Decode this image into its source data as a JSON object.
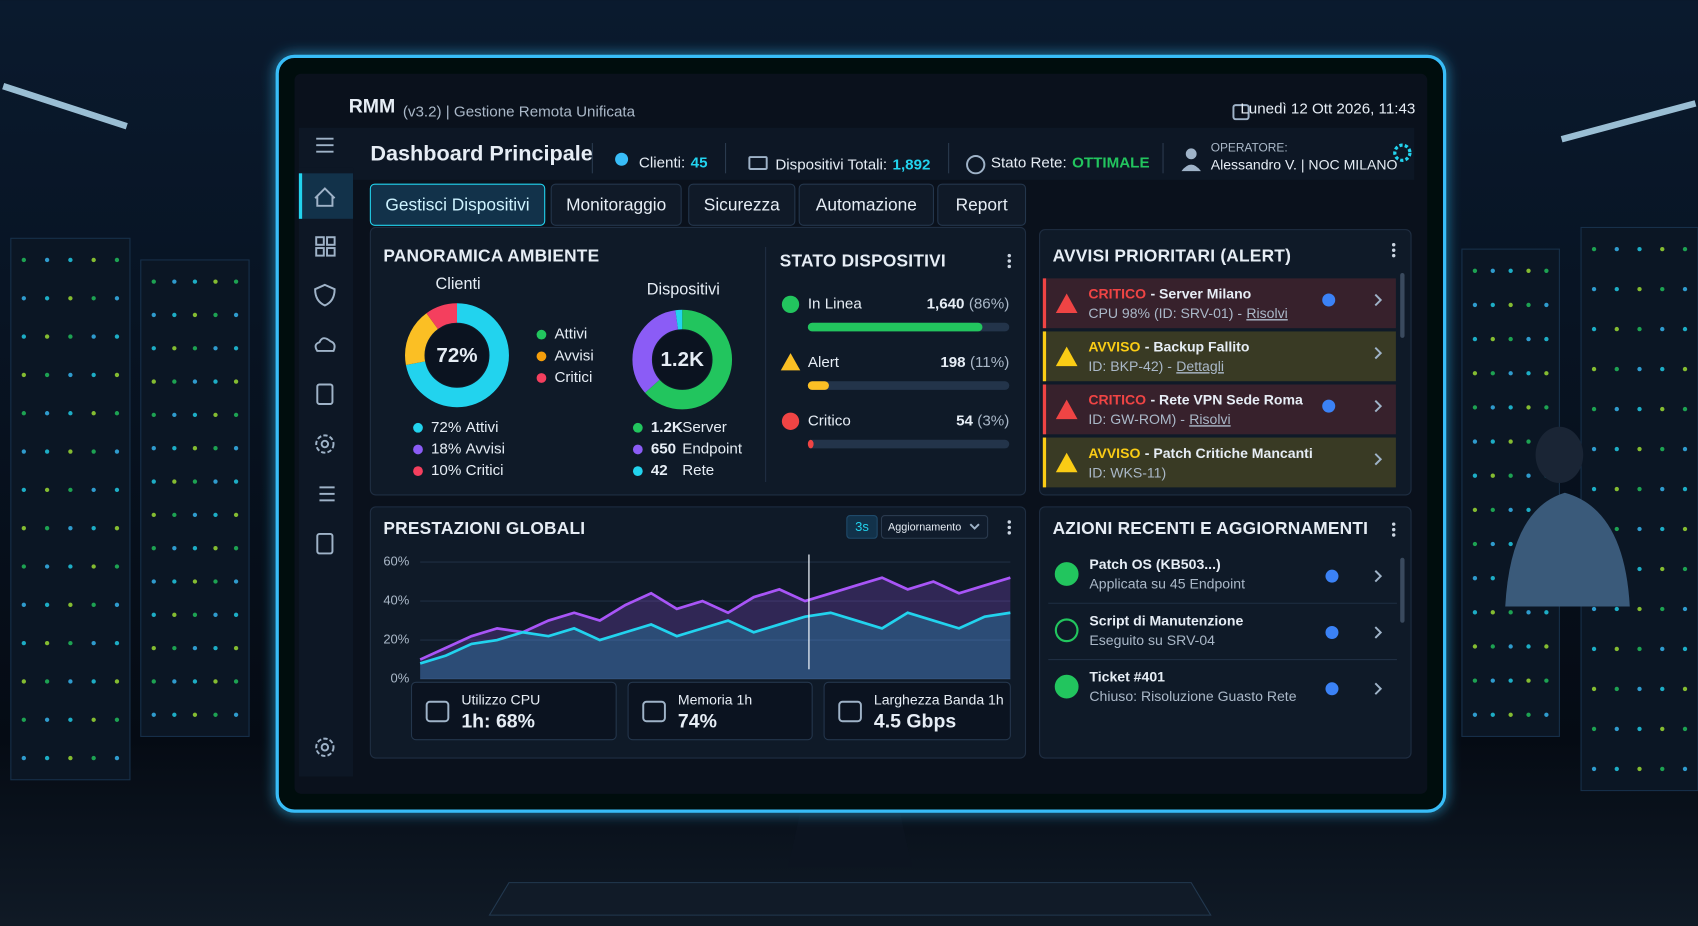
{
  "header": {
    "app": "RMM",
    "version": "(v3.2) | Gestione Remota Unificata",
    "datetime": "Lunedì 12 Ott 2026, 11:43"
  },
  "topbar": {
    "title": "Dashboard Principale",
    "clients_label": "Clienti:",
    "clients_value": "45",
    "devices_label": "Dispositivi Totali:",
    "devices_value": "1,892",
    "network_label": "Stato Rete:",
    "network_value": "OTTIMALE",
    "operator_label": "OPERATORE:",
    "operator_name": "Alessandro V. | NOC MILANO"
  },
  "tabs": [
    "Gestisci Dispositivi",
    "Monitoraggio",
    "Sicurezza",
    "Automazione",
    "Report"
  ],
  "overview": {
    "title": "PANORAMICA AMBIENTE",
    "clients": {
      "title": "Clienti",
      "values": [
        72,
        18,
        10
      ],
      "value_labels": [
        "72%",
        "18%",
        "10%"
      ],
      "names": [
        "Attivi",
        "Avvisi",
        "Critici"
      ],
      "colors": [
        "#22d3ee",
        "#fbbf24",
        "#f43f5e"
      ],
      "dot_colors": [
        "#22d3ee",
        "#8b5cf6",
        "#f43f5e"
      ],
      "legend_colors": [
        "#22c55e",
        "#f59e0b",
        "#f43f5e"
      ]
    },
    "devices": {
      "title": "Dispositivi",
      "values": [
        1200,
        650,
        42
      ],
      "value_labels": [
        "1.2K",
        "650",
        "42"
      ],
      "names": [
        "Server",
        "Endpoint",
        "Rete"
      ],
      "colors": [
        "#22c55e",
        "#8b5cf6",
        "#22d3ee"
      ]
    }
  },
  "status": {
    "title": "STATO DISPOSITIVI",
    "rows": [
      {
        "name": "In Linea",
        "value": 1640,
        "value_label": "1,640",
        "percent": 86,
        "percent_label": "(86%)",
        "color": "#22c55e"
      },
      {
        "name": "Alert",
        "value": 198,
        "value_label": "198",
        "percent": 11,
        "percent_label": "(11%)",
        "color": "#fbbf24"
      },
      {
        "name": "Critico",
        "value": 54,
        "value_label": "54",
        "percent": 3,
        "percent_label": "(3%)",
        "color": "#ef4444"
      }
    ]
  },
  "alerts": {
    "title": "AVVISI PRIORITARI (ALERT)",
    "items": [
      {
        "level": "CRITICO",
        "title": "- Server Milano",
        "detail": "CPU 98% (ID: SRV-01) -",
        "link": "Risolvi",
        "color": "#ef4444"
      },
      {
        "level": "AVVISO",
        "title": "- Backup Fallito",
        "detail": "ID: BKP-42) -",
        "link": "Dettagli",
        "color": "#facc15"
      },
      {
        "level": "CRITICO",
        "title": "- Rete VPN Sede Roma",
        "detail": "ID: GW-ROM) -",
        "link": "Risolvi",
        "color": "#ef4444"
      },
      {
        "level": "AVVISO",
        "title": "- Patch Critiche Mancanti",
        "detail": "ID: WKS-11)",
        "color": "#facc15"
      }
    ]
  },
  "performance": {
    "title": "PRESTAZIONI GLOBALI",
    "interval": "3s",
    "refresh": "Aggiornamento",
    "ylim": [
      0,
      60
    ],
    "yticks": [
      {
        "value": 0,
        "label": "0%"
      },
      {
        "value": 20,
        "label": "20%"
      },
      {
        "value": 40,
        "label": "40%"
      },
      {
        "value": 60,
        "label": "60%"
      }
    ],
    "series": [
      {
        "color": "#a855f7",
        "values": [
          10,
          16,
          22,
          26,
          24,
          30,
          34,
          30,
          38,
          44,
          36,
          40,
          34,
          42,
          46,
          40,
          44,
          48,
          52,
          46,
          50,
          44,
          48,
          52
        ]
      },
      {
        "color": "#22d3ee",
        "values": [
          8,
          12,
          18,
          20,
          24,
          22,
          26,
          20,
          24,
          28,
          22,
          26,
          30,
          24,
          28,
          32,
          34,
          30,
          26,
          34,
          30,
          26,
          32,
          34
        ]
      }
    ],
    "metrics": [
      {
        "label": "Utilizzo CPU",
        "value": "1h: 68%"
      },
      {
        "label": "Memoria 1h",
        "value": "74%"
      },
      {
        "label": "Larghezza Banda 1h",
        "value": "4.5 Gbps"
      }
    ]
  },
  "actions": {
    "title": "AZIONI RECENTI E AGGIORNAMENTI",
    "items": [
      {
        "title": "Patch OS (KB503...)",
        "detail": "Applicata su 45 Endpoint"
      },
      {
        "title": "Script di Manutenzione",
        "detail": "Eseguito su SRV-04"
      },
      {
        "title": "Ticket #401",
        "detail": "Chiuso: Risoluzione Guasto Rete"
      }
    ]
  }
}
